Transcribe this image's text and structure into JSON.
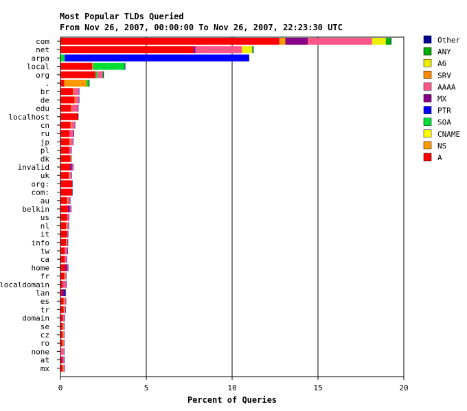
{
  "chart_data": {
    "type": "bar",
    "orientation": "horizontal",
    "stacked": true,
    "title": "Most Popular TLDs Queried",
    "subtitle": "From Nov 26, 2007, 00:00:00 To Nov 26, 2007, 22:23:30 UTC",
    "xlabel": "Percent of Queries",
    "ylabel": "",
    "xlim": [
      0,
      20
    ],
    "xticks": [
      0,
      5,
      10,
      15,
      20
    ],
    "grid": true,
    "legend_position": "right",
    "categories": [
      "com",
      "net",
      "arpa",
      "local",
      "org",
      ".",
      "br",
      "de",
      "edu",
      "localhost",
      "cn",
      "ru",
      "jp",
      "pl",
      "dk",
      "invalid",
      "uk",
      "org:",
      "com:",
      "au",
      "belkin",
      "us",
      "nl",
      "it",
      "info",
      "tw",
      "ca",
      "home",
      "fr",
      "localdomain",
      "lan",
      "es",
      "tr",
      "domain",
      "se",
      "cz",
      "ro",
      "none",
      "at",
      "mx"
    ],
    "series": [
      {
        "name": "A",
        "color": "#ff0000",
        "values": [
          12.75,
          7.75,
          0,
          1.85,
          2.05,
          0.22,
          0.72,
          0.82,
          0.62,
          1.02,
          0.58,
          0.52,
          0.52,
          0.52,
          0.58,
          0.55,
          0.48,
          0.68,
          0.68,
          0.38,
          0.43,
          0.38,
          0.32,
          0.38,
          0.32,
          0.25,
          0.25,
          0.28,
          0.22,
          0.12,
          0.08,
          0.18,
          0.18,
          0.12,
          0.12,
          0.12,
          0.12,
          0.03,
          0.08,
          0.12
        ]
      },
      {
        "name": "NS",
        "color": "#ff9900",
        "values": [
          0.35,
          0,
          0,
          0.05,
          0,
          1.3,
          0.05,
          0.05,
          0.05,
          0,
          0.05,
          0,
          0.05,
          0,
          0.05,
          0,
          0.05,
          0,
          0,
          0.05,
          0,
          0,
          0.05,
          0,
          0.05,
          0,
          0,
          0,
          0.05,
          0,
          0,
          0.05,
          0.05,
          0,
          0.05,
          0.05,
          0.05,
          0,
          0,
          0.05
        ]
      },
      {
        "name": "CNAME",
        "color": "#ffff00",
        "values": [
          0,
          0,
          0,
          0,
          0,
          0,
          0,
          0,
          0,
          0,
          0,
          0,
          0,
          0,
          0,
          0,
          0,
          0,
          0,
          0,
          0,
          0,
          0,
          0,
          0,
          0,
          0,
          0,
          0,
          0,
          0,
          0,
          0,
          0,
          0,
          0,
          0,
          0,
          0,
          0
        ]
      },
      {
        "name": "SOA",
        "color": "#00dd33",
        "values": [
          0,
          0,
          0.25,
          1.8,
          0.1,
          0.1,
          0,
          0,
          0,
          0,
          0,
          0,
          0,
          0,
          0,
          0,
          0,
          0,
          0,
          0,
          0,
          0,
          0,
          0,
          0,
          0,
          0,
          0,
          0,
          0,
          0,
          0,
          0,
          0,
          0,
          0,
          0,
          0,
          0,
          0
        ]
      },
      {
        "name": "PTR",
        "color": "#0000ff",
        "values": [
          0,
          0,
          10.7,
          0,
          0,
          0,
          0,
          0,
          0,
          0,
          0,
          0,
          0,
          0,
          0,
          0,
          0,
          0,
          0,
          0,
          0,
          0,
          0,
          0,
          0,
          0,
          0,
          0,
          0,
          0,
          0,
          0,
          0,
          0,
          0,
          0,
          0,
          0,
          0,
          0
        ]
      },
      {
        "name": "MX",
        "color": "#880088",
        "values": [
          1.3,
          0.12,
          0,
          0,
          0,
          0,
          0,
          0,
          0,
          0,
          0,
          0,
          0,
          0,
          0,
          0.12,
          0,
          0,
          0,
          0,
          0.12,
          0,
          0,
          0,
          0,
          0,
          0,
          0.1,
          0,
          0,
          0.15,
          0,
          0,
          0,
          0,
          0,
          0,
          0,
          0.05,
          0
        ]
      },
      {
        "name": "AAAA",
        "color": "#ff5588",
        "values": [
          3.75,
          2.7,
          0,
          0,
          0.3,
          0,
          0.3,
          0.2,
          0.35,
          0,
          0.2,
          0.25,
          0.15,
          0.1,
          0,
          0.05,
          0.1,
          0,
          0,
          0.12,
          0.05,
          0.1,
          0.1,
          0.05,
          0.05,
          0.15,
          0.1,
          0.05,
          0.05,
          0.2,
          0,
          0.08,
          0.06,
          0.1,
          0.04,
          0.04,
          0.04,
          0.18,
          0.07,
          0.06
        ]
      },
      {
        "name": "A6",
        "color": "#eeee00",
        "values": [
          0.8,
          0.6,
          0,
          0,
          0,
          0,
          0,
          0,
          0,
          0,
          0,
          0,
          0,
          0,
          0,
          0,
          0,
          0,
          0,
          0,
          0,
          0,
          0,
          0,
          0,
          0,
          0,
          0,
          0,
          0,
          0,
          0,
          0,
          0,
          0,
          0,
          0,
          0,
          0,
          0
        ]
      },
      {
        "name": "ANY",
        "color": "#00aa00",
        "values": [
          0.3,
          0.05,
          0,
          0.05,
          0.05,
          0.05,
          0,
          0,
          0,
          0,
          0,
          0,
          0,
          0,
          0,
          0,
          0,
          0,
          0,
          0,
          0,
          0,
          0,
          0,
          0,
          0,
          0,
          0,
          0,
          0,
          0,
          0,
          0,
          0,
          0,
          0,
          0,
          0,
          0,
          0
        ]
      },
      {
        "name": "Other",
        "color": "#000099",
        "values": [
          0.03,
          0.03,
          0.05,
          0.03,
          0.03,
          0.02,
          0.03,
          0.03,
          0.03,
          0.03,
          0.03,
          0.03,
          0.03,
          0.03,
          0.02,
          0.03,
          0.03,
          0.02,
          0.02,
          0.03,
          0.03,
          0.03,
          0.03,
          0.03,
          0.03,
          0.03,
          0.03,
          0.03,
          0.02,
          0.03,
          0.08,
          0.02,
          0.02,
          0.03,
          0.02,
          0.02,
          0.02,
          0.02,
          0.03,
          0.02
        ]
      }
    ],
    "legend_order": [
      "Other",
      "ANY",
      "A6",
      "SRV",
      "AAAA",
      "MX",
      "PTR",
      "SOA",
      "CNAME",
      "NS",
      "A"
    ],
    "legend_colors": {
      "Other": "#000099",
      "ANY": "#00aa00",
      "A6": "#eeee00",
      "SRV": "#ff8800",
      "AAAA": "#ff5588",
      "MX": "#880088",
      "PTR": "#0000ff",
      "SOA": "#00dd33",
      "CNAME": "#ffff00",
      "NS": "#ff9900",
      "A": "#ff0000"
    }
  }
}
